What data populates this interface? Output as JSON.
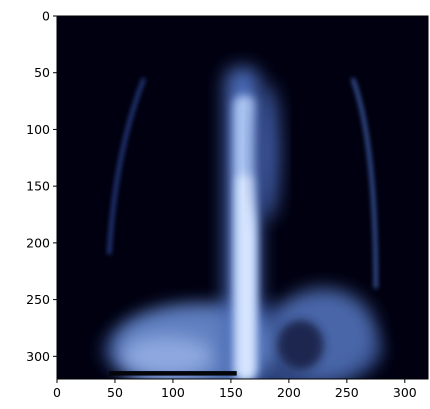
{
  "chart_data": {
    "type": "image",
    "xlim": [
      0,
      320
    ],
    "ylim": [
      320,
      0
    ],
    "xticks": [
      0,
      50,
      100,
      150,
      200,
      250,
      300
    ],
    "yticks": [
      0,
      50,
      100,
      150,
      200,
      250,
      300
    ]
  }
}
